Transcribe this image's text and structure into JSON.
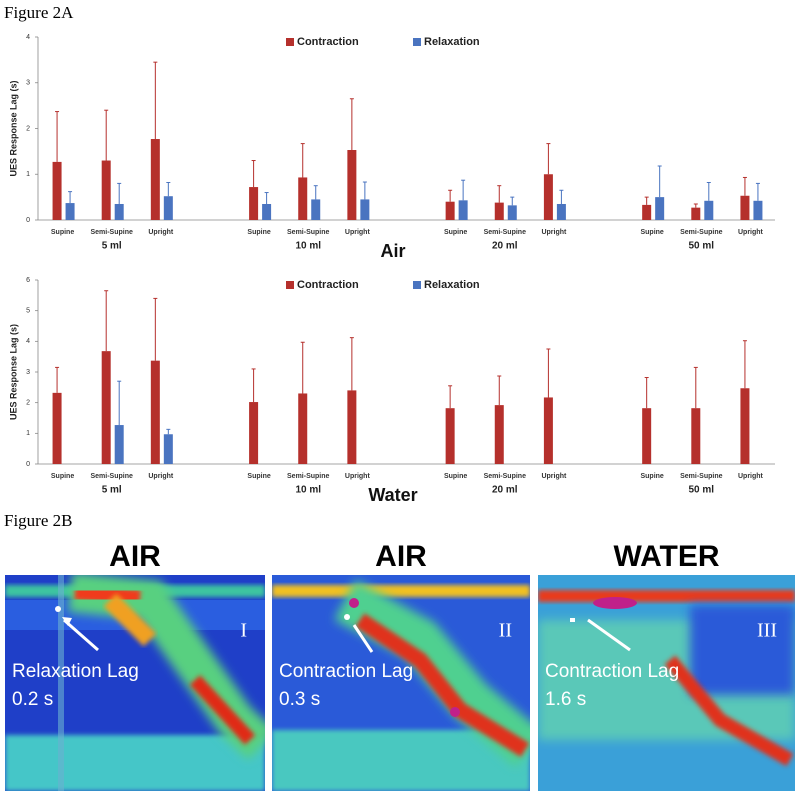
{
  "figure_2a_label": "Figure 2A",
  "chart_data": [
    {
      "type": "bar",
      "y_label": "UES Response Lag (s)",
      "x_label": "Air",
      "categories": [
        "Supine",
        "Semi-Supine",
        "Upright",
        "Supine",
        "Semi-Supine",
        "Upright",
        "Supine",
        "Semi-Supine",
        "Upright",
        "Supine",
        "Semi-Supine",
        "Upright"
      ],
      "groups": [
        "5 ml",
        "10 ml",
        "20 ml",
        "50 ml"
      ],
      "ylim": [
        0,
        4
      ],
      "yticks": [
        0,
        1,
        2,
        3,
        4
      ],
      "legend": "top",
      "series": [
        {
          "name": "Contraction",
          "color": "#b5302c",
          "values": [
            1.27,
            1.3,
            1.77,
            0.72,
            0.93,
            1.53,
            0.4,
            0.38,
            1.0,
            0.33,
            0.27,
            0.53
          ],
          "errors": [
            1.1,
            1.1,
            1.68,
            0.58,
            0.74,
            1.12,
            0.25,
            0.37,
            0.67,
            0.17,
            0.08,
            0.4
          ]
        },
        {
          "name": "Relaxation",
          "color": "#4a74c0",
          "values": [
            0.37,
            0.35,
            0.52,
            0.35,
            0.45,
            0.45,
            0.43,
            0.32,
            0.35,
            0.5,
            0.42,
            0.42
          ],
          "errors": [
            0.25,
            0.45,
            0.3,
            0.25,
            0.3,
            0.38,
            0.44,
            0.18,
            0.3,
            0.68,
            0.4,
            0.38
          ]
        }
      ]
    },
    {
      "type": "bar",
      "y_label": "UES Response Lag (s)",
      "x_label": "Water",
      "categories": [
        "Supine",
        "Semi-Supine",
        "Upright",
        "Supine",
        "Semi-Supine",
        "Upright",
        "Supine",
        "Semi-Supine",
        "Upright",
        "Supine",
        "Semi-Supine",
        "Upright"
      ],
      "groups": [
        "5 ml",
        "10 ml",
        "20 ml",
        "50 ml"
      ],
      "ylim": [
        0,
        6
      ],
      "yticks": [
        0,
        1,
        2,
        3,
        4,
        5,
        6
      ],
      "legend": "top",
      "series": [
        {
          "name": "Contraction",
          "color": "#b5302c",
          "values": [
            2.32,
            3.68,
            3.37,
            2.02,
            2.3,
            2.4,
            1.82,
            1.92,
            2.17,
            1.82,
            1.82,
            2.47
          ],
          "errors": [
            0.83,
            1.97,
            2.03,
            1.08,
            1.67,
            1.72,
            0.73,
            0.95,
            1.58,
            1.0,
            1.33,
            1.55
          ]
        },
        {
          "name": "Relaxation",
          "color": "#4a74c0",
          "values": [
            null,
            1.27,
            0.97,
            null,
            null,
            null,
            null,
            null,
            null,
            null,
            null,
            null
          ],
          "errors": [
            null,
            1.43,
            0.16,
            null,
            null,
            null,
            null,
            null,
            null,
            null,
            null,
            null
          ]
        }
      ]
    }
  ],
  "figure_2b": {
    "label": "Figure 2B",
    "panels": [
      {
        "title": "AIR",
        "numeral": "I",
        "annotation": "Relaxation Lag",
        "lag": "0.2 s"
      },
      {
        "title": "AIR",
        "numeral": "II",
        "annotation": "Contraction Lag",
        "lag": "0.3 s"
      },
      {
        "title": "WATER",
        "numeral": "III",
        "annotation": "Contraction Lag",
        "lag": "1.6 s"
      }
    ]
  }
}
